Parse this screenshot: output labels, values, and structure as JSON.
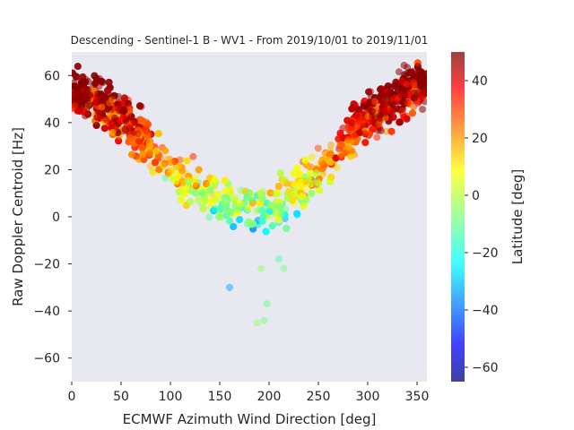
{
  "chart_data": {
    "type": "scatter",
    "title": "Descending - Sentinel-1 B - WV1 - From 2019/10/01 to 2019/11/01",
    "xlabel": "ECMWF Azimuth Wind Direction [deg]",
    "ylabel": "Raw Doppler Centroid [Hz]",
    "xlim": [
      0,
      360
    ],
    "ylim": [
      -70,
      70
    ],
    "xticks": [
      0,
      50,
      100,
      150,
      200,
      250,
      300,
      350
    ],
    "yticks": [
      -60,
      -40,
      -20,
      0,
      20,
      40,
      60
    ],
    "grid": false,
    "background": "#e8e8f0",
    "colorbar": {
      "label": "Latitude [deg]",
      "range": [
        -65,
        50
      ],
      "ticks": [
        -60,
        -40,
        -20,
        0,
        20,
        40
      ],
      "colormap": "jet"
    },
    "trend": [
      {
        "x": 0,
        "y": 52
      },
      {
        "x": 25,
        "y": 50
      },
      {
        "x": 50,
        "y": 42
      },
      {
        "x": 75,
        "y": 32
      },
      {
        "x": 100,
        "y": 20
      },
      {
        "x": 125,
        "y": 12
      },
      {
        "x": 150,
        "y": 6
      },
      {
        "x": 175,
        "y": 3
      },
      {
        "x": 200,
        "y": 4
      },
      {
        "x": 225,
        "y": 10
      },
      {
        "x": 250,
        "y": 20
      },
      {
        "x": 275,
        "y": 32
      },
      {
        "x": 300,
        "y": 42
      },
      {
        "x": 325,
        "y": 50
      },
      {
        "x": 350,
        "y": 55
      },
      {
        "x": 360,
        "y": 56
      }
    ],
    "outliers": [
      {
        "x": 160,
        "y": -30,
        "lat": -30
      },
      {
        "x": 188,
        "y": -45,
        "lat": -5
      },
      {
        "x": 195,
        "y": -44,
        "lat": -8
      },
      {
        "x": 198,
        "y": -37,
        "lat": -10
      },
      {
        "x": 192,
        "y": -22,
        "lat": -5
      },
      {
        "x": 210,
        "y": -18,
        "lat": -12
      },
      {
        "x": 215,
        "y": -22,
        "lat": -8
      }
    ],
    "point_count": 2600
  }
}
